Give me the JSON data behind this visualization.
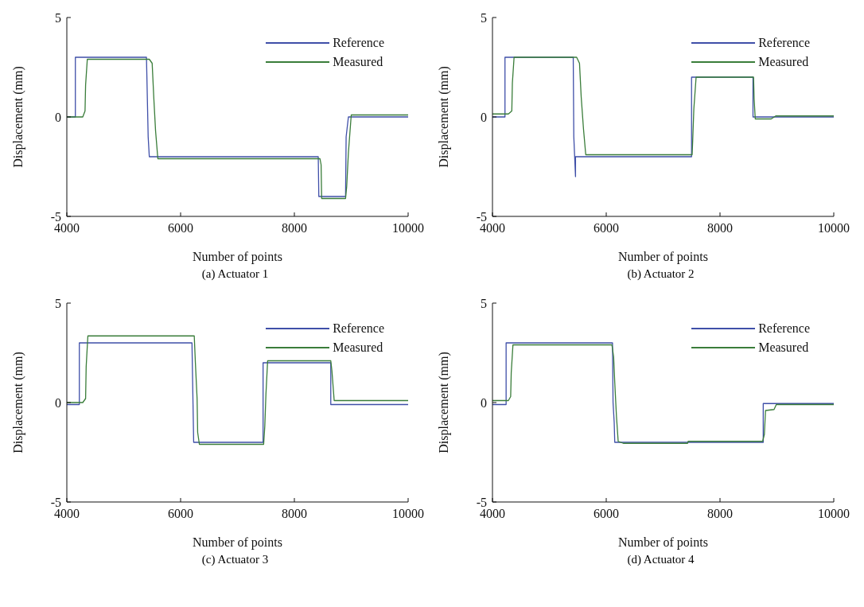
{
  "chart_data": [
    {
      "type": "line",
      "title": "(a) Actuator 1",
      "xlabel": "Number of points",
      "ylabel": "Displacement (mm)",
      "xlim": [
        4000,
        10000
      ],
      "xticks": [
        4000,
        6000,
        8000,
        10000
      ],
      "ylim": [
        -5,
        5
      ],
      "yticks": [
        -5,
        0,
        5
      ],
      "legend": "top right",
      "series": [
        {
          "name": "Reference",
          "color": "#3f4fa8",
          "x": [
            4000,
            4150,
            4150,
            5400,
            5430,
            5450,
            8420,
            8430,
            8900,
            8910,
            8950,
            10000
          ],
          "values": [
            0,
            0,
            3,
            3,
            -1,
            -2,
            -2,
            -4,
            -4,
            -1,
            0,
            0
          ]
        },
        {
          "name": "Measured",
          "color": "#3a7d3a",
          "x": [
            4000,
            4280,
            4320,
            4330,
            4360,
            5450,
            5500,
            5530,
            5560,
            5600,
            8450,
            8470,
            8480,
            8900,
            8920,
            8950,
            9000,
            10000
          ],
          "values": [
            0,
            0,
            0.3,
            1.6,
            2.9,
            2.9,
            2.7,
            0.9,
            -0.7,
            -2.1,
            -2.1,
            -2.4,
            -4.1,
            -4.1,
            -3.5,
            -1.8,
            0.1,
            0.1
          ]
        }
      ]
    },
    {
      "type": "line",
      "title": "(b) Actuator 2",
      "xlabel": "Number of points",
      "ylabel": "Displacement (mm)",
      "xlim": [
        4000,
        10000
      ],
      "xticks": [
        4000,
        6000,
        8000,
        10000
      ],
      "ylim": [
        -5,
        5
      ],
      "yticks": [
        -5,
        0,
        5
      ],
      "legend": "top right",
      "series": [
        {
          "name": "Reference",
          "color": "#3f4fa8",
          "x": [
            4000,
            4220,
            4220,
            5420,
            5430,
            5460,
            5460,
            7500,
            7500,
            8580,
            8580,
            10000
          ],
          "values": [
            0,
            0,
            3,
            3,
            -1,
            -3,
            -2,
            -2,
            2,
            2,
            0,
            0
          ]
        },
        {
          "name": "Measured",
          "color": "#3a7d3a",
          "x": [
            4000,
            4280,
            4340,
            4350,
            4380,
            5480,
            5530,
            5560,
            5600,
            5640,
            7510,
            7520,
            7540,
            7580,
            8590,
            8600,
            8620,
            8900,
            8980,
            10000
          ],
          "values": [
            0.15,
            0.15,
            0.3,
            1.7,
            3,
            3,
            2.7,
            1,
            -0.6,
            -1.9,
            -1.9,
            -1.2,
            0.4,
            2,
            2,
            0.9,
            -0.1,
            -0.1,
            0.05,
            0.05
          ]
        }
      ]
    },
    {
      "type": "line",
      "title": "(c) Actuator 3",
      "xlabel": "Number of points",
      "ylabel": "Displacement (mm)",
      "xlim": [
        4000,
        10000
      ],
      "xticks": [
        4000,
        6000,
        8000,
        10000
      ],
      "ylim": [
        -5,
        5
      ],
      "yticks": [
        -5,
        0,
        5
      ],
      "legend": "top right",
      "series": [
        {
          "name": "Reference",
          "color": "#3f4fa8",
          "x": [
            4000,
            4220,
            4220,
            6200,
            6230,
            7450,
            7450,
            8640,
            8640,
            10000
          ],
          "values": [
            -0.1,
            -0.1,
            3,
            3,
            -2,
            -2,
            2,
            2,
            -0.1,
            -0.1
          ]
        },
        {
          "name": "Measured",
          "color": "#3a7d3a",
          "x": [
            4000,
            4280,
            4330,
            4340,
            4370,
            6240,
            6260,
            6290,
            6300,
            6330,
            7460,
            7480,
            7500,
            7530,
            8640,
            8660,
            8700,
            10000
          ],
          "values": [
            0,
            0,
            0.2,
            1.8,
            3.35,
            3.35,
            2,
            0.2,
            -1.5,
            -2.1,
            -2.1,
            -1.2,
            0.4,
            2.1,
            2.1,
            1.6,
            0.1,
            0.1
          ]
        }
      ]
    },
    {
      "type": "line",
      "title": "(d) Actuator 4",
      "xlabel": "Number of points",
      "ylabel": "Displacement (mm)",
      "xlim": [
        4000,
        10000
      ],
      "xticks": [
        4000,
        6000,
        8000,
        10000
      ],
      "ylim": [
        -5,
        5
      ],
      "yticks": [
        -5,
        0,
        5
      ],
      "legend": "top right",
      "series": [
        {
          "name": "Reference",
          "color": "#3f4fa8",
          "x": [
            4000,
            4240,
            4240,
            6110,
            6120,
            6140,
            6150,
            8760,
            8760,
            10000
          ],
          "values": [
            -0.1,
            -0.1,
            3,
            3,
            0,
            -1,
            -2,
            -2,
            -0.05,
            -0.05
          ]
        },
        {
          "name": "Measured",
          "color": "#3a7d3a",
          "x": [
            4000,
            4280,
            4320,
            4330,
            4360,
            6100,
            6130,
            6150,
            6180,
            6210,
            6300,
            7430,
            7440,
            8750,
            8780,
            8800,
            8950,
            8990,
            10000
          ],
          "values": [
            0.1,
            0.1,
            0.3,
            1.5,
            2.9,
            2.9,
            2.3,
            1,
            -0.7,
            -1.95,
            -2.05,
            -2.05,
            -1.95,
            -1.95,
            -1.6,
            -0.4,
            -0.35,
            -0.1,
            -0.1
          ]
        }
      ]
    }
  ]
}
